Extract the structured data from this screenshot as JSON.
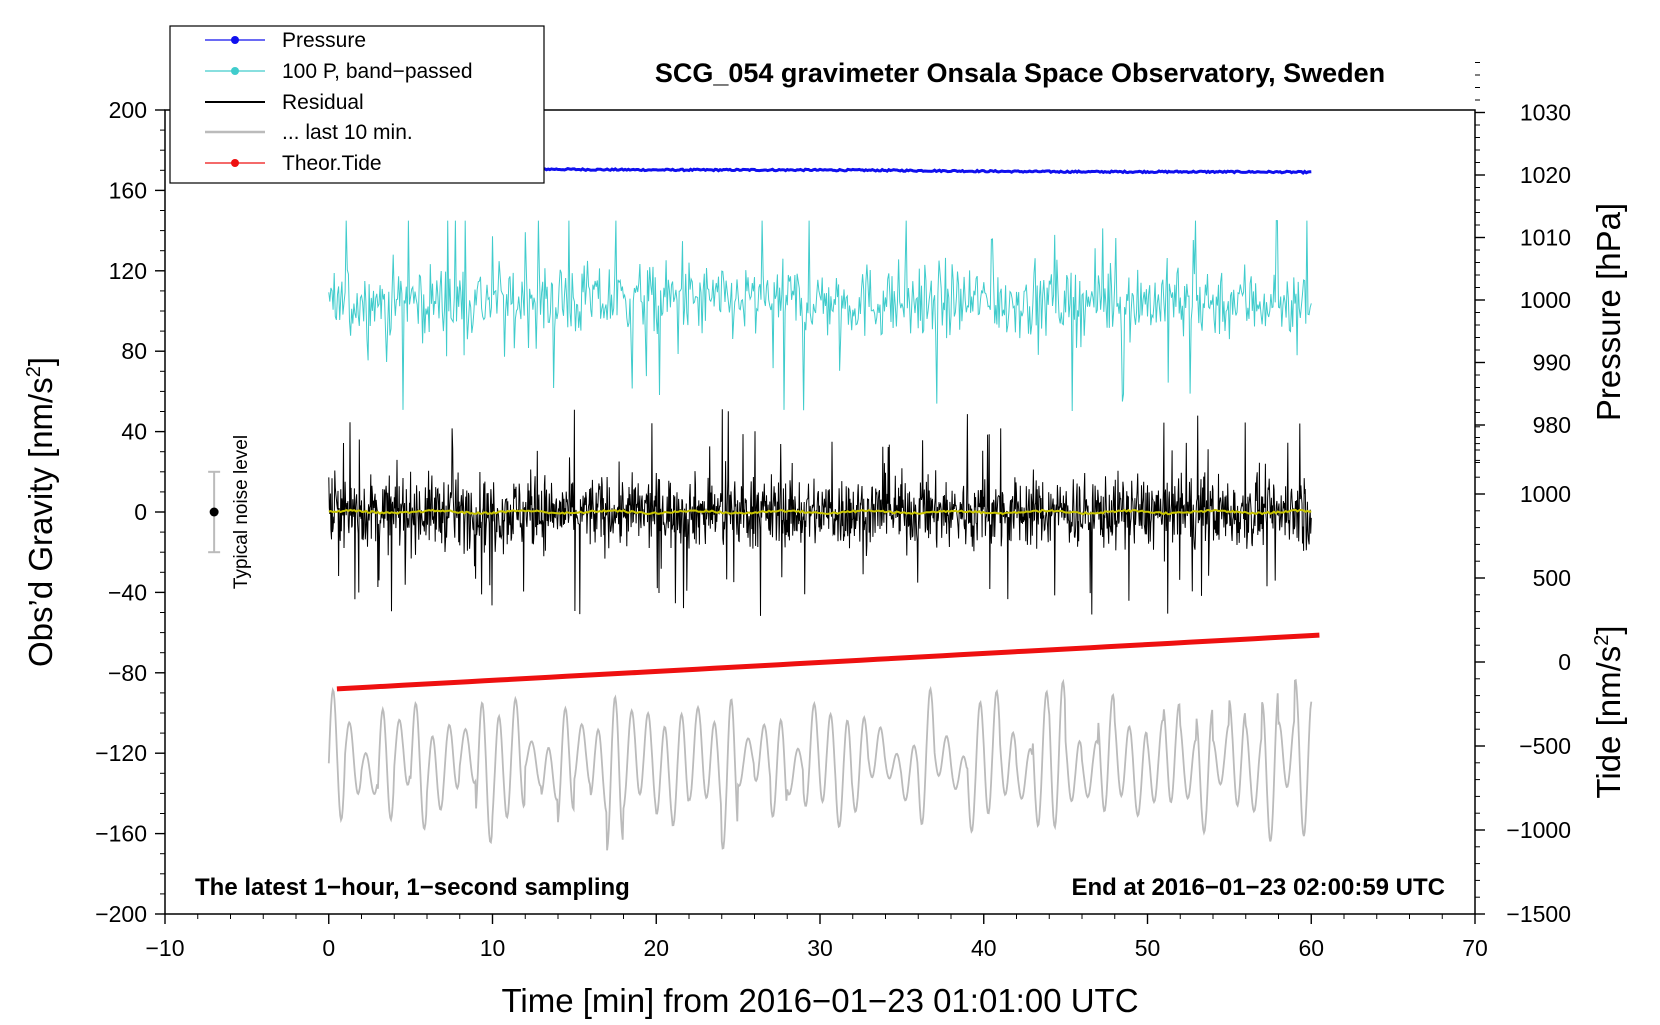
{
  "chart_data": {
    "type": "line",
    "title": "SCG_054 gravimeter Onsala Space Observatory, Sweden",
    "xlabel": "Time [min] from 2016−01−23 01:01:00 UTC",
    "ylabel_left_main": "Obs’d Gravity [nm/s",
    "ylabel_left_sup": "2",
    "ylabel_left_close": "]",
    "ylabel_right_pressure": "Pressure [hPa]",
    "ylabel_right_tide_main": "Tide [nm/s",
    "ylabel_right_tide_sup": "2",
    "ylabel_right_tide_close": "]",
    "xlim": [
      -10,
      70
    ],
    "ylim_left": [
      -200,
      200
    ],
    "ylim_pressure": [
      960,
      1040
    ],
    "ylim_tide": [
      -1500,
      1500
    ],
    "x_ticks": [
      "−10",
      "0",
      "10",
      "20",
      "30",
      "40",
      "50",
      "60",
      "70"
    ],
    "x_tick_values": [
      -10,
      0,
      10,
      20,
      30,
      40,
      50,
      60,
      70
    ],
    "y_left_ticks": [
      "200",
      "160",
      "120",
      "80",
      "40",
      "0",
      "−40",
      "−80",
      "−120",
      "−160",
      "−200"
    ],
    "y_left_tick_values": [
      200,
      160,
      120,
      80,
      40,
      0,
      -40,
      -80,
      -120,
      -160,
      -200
    ],
    "y_pressure_ticks": [
      "1030",
      "1020",
      "1010",
      "1000",
      "990",
      "980"
    ],
    "y_pressure_tick_values": [
      1030,
      1020,
      1010,
      1000,
      990,
      980
    ],
    "y_tide_ticks": [
      "1000",
      "500",
      "0",
      "−500",
      "−1000",
      "−1500"
    ],
    "y_tide_tick_values": [
      1000,
      500,
      0,
      -500,
      -1000,
      -1500
    ],
    "legend": [
      {
        "label": "Pressure",
        "color": "#1010ee",
        "marker": true
      },
      {
        "label": "100 P, band−passed",
        "color": "#40cccc",
        "marker": true
      },
      {
        "label": "Residual",
        "color": "#000000",
        "marker": false
      },
      {
        "label": "... last 10 min.",
        "color": "#bbbbbb",
        "marker": false
      },
      {
        "label": "Theor.Tide",
        "color": "#ee1010",
        "marker": true
      }
    ],
    "annotations": {
      "bottom_left": "The latest 1−hour, 1−second sampling",
      "bottom_right": "End at 2016−01−23 02:00:59 UTC",
      "noise_label": "Typical noise level"
    },
    "noise_bar": {
      "x": -7,
      "center": 0,
      "low": -20,
      "high": 20
    },
    "series": [
      {
        "name": "Pressure",
        "axis": "pressure",
        "color": "#1010ee",
        "x_range": [
          0,
          60
        ],
        "start": 1021.1,
        "end": 1020.4,
        "amplitude": 0.25
      },
      {
        "name": "100 P, band−passed",
        "axis": "left",
        "color": "#40cccc",
        "x_range": [
          0,
          60
        ],
        "center": 105,
        "amplitude": 22,
        "min": 48,
        "max": 145
      },
      {
        "name": "Residual",
        "axis": "left",
        "color": "#000000",
        "x_range": [
          0,
          60
        ],
        "center": 0,
        "amplitude": 18,
        "min": -53,
        "max": 52
      },
      {
        "name": "Residual smoothed",
        "axis": "left",
        "color": "#c8c400",
        "x_range": [
          0,
          60
        ],
        "center": 0,
        "amplitude": 1
      },
      {
        "name": "... last 10 min.",
        "axis": "left",
        "color": "#bbbbbb",
        "x_range": [
          0,
          60
        ],
        "center": -125,
        "amplitude": 20,
        "min": -175,
        "max": -72
      },
      {
        "name": "Theor.Tide",
        "axis": "tide",
        "color": "#ee1010",
        "x_range": [
          0.5,
          60.5
        ],
        "start": -160,
        "end": 160
      }
    ]
  }
}
